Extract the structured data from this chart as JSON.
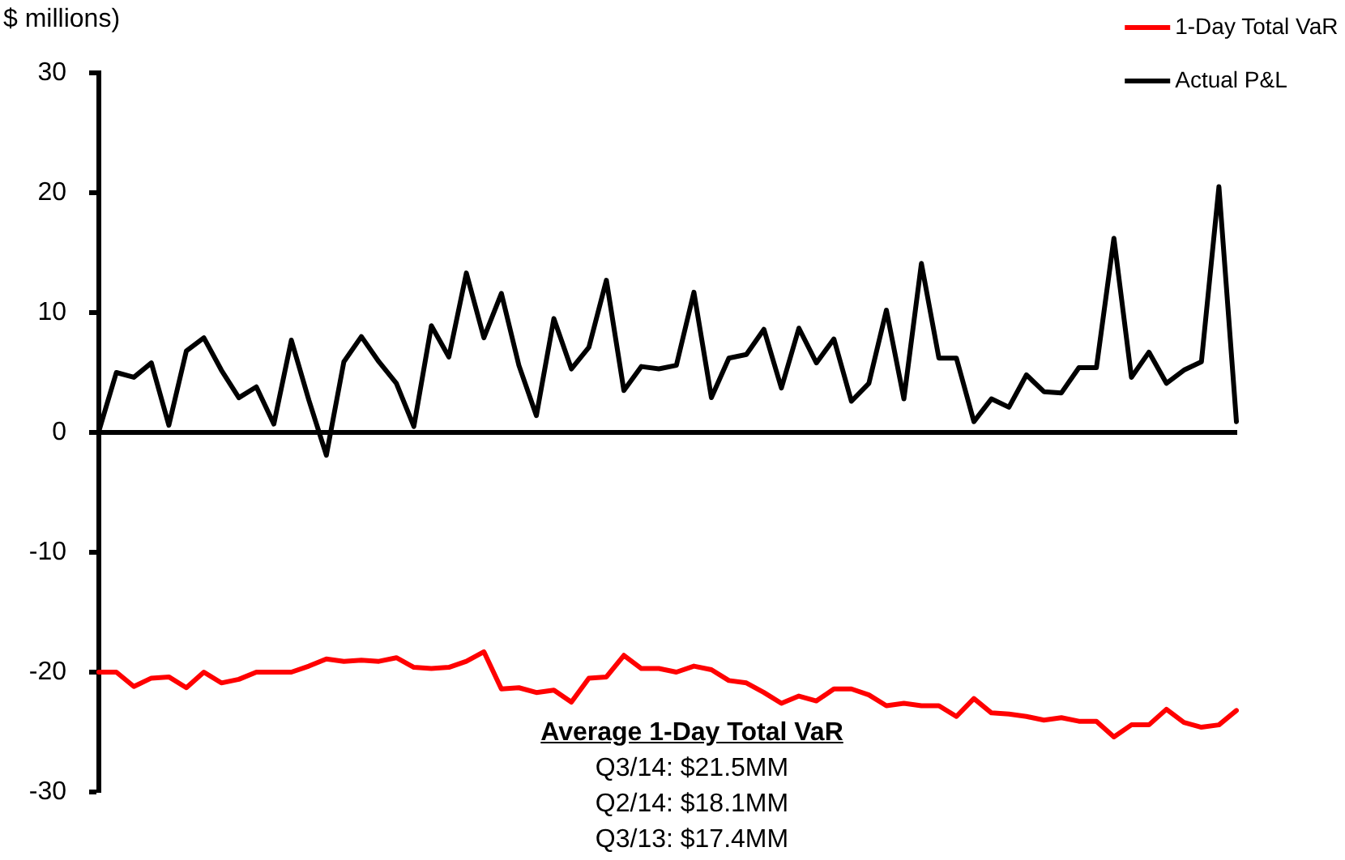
{
  "chart_data": {
    "type": "line",
    "ylabel": "$ millions)",
    "categories": [
      null,
      null,
      null,
      null,
      null,
      null,
      null,
      null,
      null,
      null,
      null,
      null,
      null,
      null,
      null,
      null,
      null,
      null,
      null,
      null,
      null,
      null,
      null,
      null,
      null,
      null,
      null,
      null,
      null,
      null,
      null,
      null,
      null,
      null,
      null,
      null,
      null,
      null,
      null,
      null,
      null,
      null,
      null,
      null,
      null,
      null,
      null,
      null,
      null,
      null,
      null,
      null,
      null,
      null,
      null,
      null,
      null,
      null,
      null,
      null,
      null,
      null,
      null,
      null,
      null,
      null
    ],
    "series": [
      {
        "name": "1-Day Total VaR",
        "color": "#ff0000",
        "values": [
          -20,
          -20,
          -21.2,
          -20.5,
          -20.4,
          -21.3,
          -20,
          -20.9,
          -20.6,
          -20,
          -20,
          -20,
          -19.5,
          -18.9,
          -19.1,
          -19,
          -19.1,
          -18.8,
          -19.6,
          -19.7,
          -19.6,
          -19.1,
          -18.3,
          -21.4,
          -21.3,
          -21.7,
          -21.5,
          -22.5,
          -20.5,
          -20.4,
          -18.6,
          -19.7,
          -19.7,
          -20,
          -19.5,
          -19.8,
          -20.7,
          -20.9,
          -21.7,
          -22.6,
          -22,
          -22.4,
          -21.4,
          -21.4,
          -21.9,
          -22.8,
          -22.6,
          -22.8,
          -22.8,
          -23.7,
          -22.2,
          -23.4,
          -23.5,
          -23.7,
          -24,
          -23.8,
          -24.1,
          -24.1,
          -25.4,
          -24.4,
          -24.4,
          -23.1,
          -24.2,
          -24.6,
          -24.4,
          -23.2
        ]
      },
      {
        "name": "Actual P&L",
        "color": "#000000",
        "values": [
          0.1,
          5,
          4.6,
          5.8,
          0.6,
          6.8,
          7.9,
          5.2,
          2.9,
          3.8,
          0.7,
          7.7,
          2.7,
          -1.9,
          5.9,
          8,
          5.9,
          4.1,
          0.5,
          8.9,
          6.3,
          13.3,
          7.9,
          11.6,
          5.6,
          1.4,
          9.5,
          5.3,
          7.1,
          12.7,
          3.5,
          5.5,
          5.3,
          5.6,
          11.7,
          2.9,
          6.2,
          6.5,
          8.6,
          3.7,
          8.7,
          5.8,
          7.8,
          2.6,
          4.1,
          10.2,
          2.8,
          14.1,
          6.2,
          6.2,
          0.9,
          2.8,
          2.1,
          4.8,
          3.4,
          3.3,
          5.4,
          5.4,
          16.2,
          4.6,
          6.7,
          4.1,
          5.2,
          5.9,
          20.5,
          0.9
        ]
      }
    ],
    "ylim": [
      -30,
      30
    ],
    "yticks": [
      -30,
      -20,
      -10,
      0,
      10,
      20,
      30
    ],
    "tick_labels": "y",
    "marker": "none",
    "legend": "top right",
    "annotations": [
      "Average 1-Day Total VaR",
      "Q3/14: $21.5MM",
      "Q2/14: $18.1MM",
      "Q3/13: $17.4MM"
    ]
  }
}
